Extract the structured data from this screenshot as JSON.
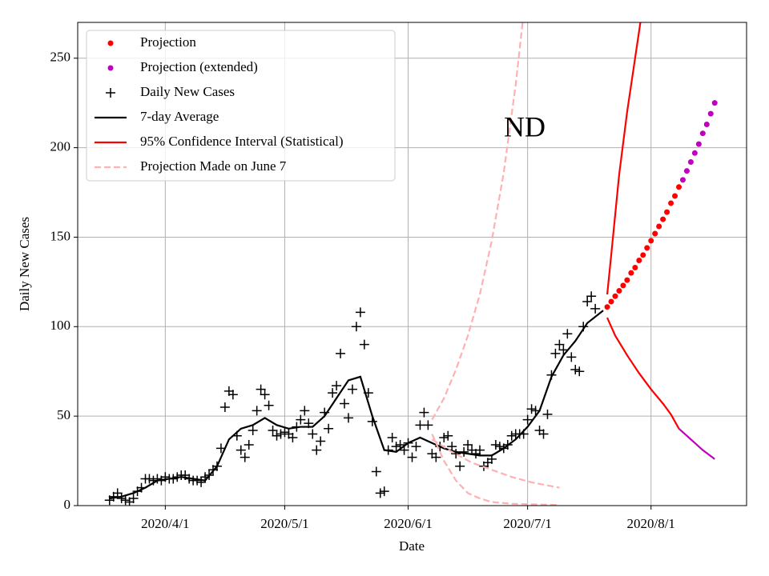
{
  "chart_data": {
    "type": "line",
    "annotation": "ND",
    "xlabel": "Date",
    "ylabel": "Daily New Cases",
    "xlim": [
      "2020/3/10",
      "2020/8/25"
    ],
    "ylim": [
      0,
      270
    ],
    "xticks": [
      "2020/4/1",
      "2020/5/1",
      "2020/6/1",
      "2020/7/1",
      "2020/8/1"
    ],
    "yticks": [
      0,
      50,
      100,
      150,
      200,
      250
    ],
    "grid": true,
    "legend": "upper left",
    "series": [
      {
        "name": "Projection",
        "color": "#ff0000",
        "style": "dot",
        "x": [
          "2020/7/21",
          "2020/7/22",
          "2020/7/23",
          "2020/7/24",
          "2020/7/25",
          "2020/7/26",
          "2020/7/27",
          "2020/7/28",
          "2020/7/29",
          "2020/7/30",
          "2020/7/31",
          "2020/8/1",
          "2020/8/2",
          "2020/8/3",
          "2020/8/4",
          "2020/8/5",
          "2020/8/6",
          "2020/8/7",
          "2020/8/8"
        ],
        "values": [
          111,
          114,
          117,
          120,
          123,
          126,
          130,
          133,
          137,
          140,
          144,
          148,
          152,
          156,
          160,
          164,
          169,
          173,
          178
        ]
      },
      {
        "name": "Projection (extended)",
        "color": "#bf00bf",
        "style": "dot",
        "x": [
          "2020/8/9",
          "2020/8/10",
          "2020/8/11",
          "2020/8/12",
          "2020/8/13",
          "2020/8/14",
          "2020/8/15",
          "2020/8/16",
          "2020/8/17"
        ],
        "values": [
          182,
          187,
          192,
          197,
          202,
          208,
          213,
          219,
          225
        ]
      },
      {
        "name": "Daily New Cases",
        "color": "#000000",
        "style": "plus",
        "x": [
          "2020/3/18",
          "2020/3/19",
          "2020/3/20",
          "2020/3/21",
          "2020/3/22",
          "2020/3/23",
          "2020/3/24",
          "2020/3/25",
          "2020/3/26",
          "2020/3/27",
          "2020/3/28",
          "2020/3/29",
          "2020/3/30",
          "2020/3/31",
          "2020/4/1",
          "2020/4/2",
          "2020/4/3",
          "2020/4/4",
          "2020/4/5",
          "2020/4/6",
          "2020/4/7",
          "2020/4/8",
          "2020/4/9",
          "2020/4/10",
          "2020/4/11",
          "2020/4/12",
          "2020/4/13",
          "2020/4/14",
          "2020/4/15",
          "2020/4/16",
          "2020/4/17",
          "2020/4/18",
          "2020/4/19",
          "2020/4/20",
          "2020/4/21",
          "2020/4/22",
          "2020/4/23",
          "2020/4/24",
          "2020/4/25",
          "2020/4/26",
          "2020/4/27",
          "2020/4/28",
          "2020/4/29",
          "2020/4/30",
          "2020/5/1",
          "2020/5/2",
          "2020/5/3",
          "2020/5/4",
          "2020/5/5",
          "2020/5/6",
          "2020/5/7",
          "2020/5/8",
          "2020/5/9",
          "2020/5/10",
          "2020/5/11",
          "2020/5/12",
          "2020/5/13",
          "2020/5/14",
          "2020/5/15",
          "2020/5/16",
          "2020/5/17",
          "2020/5/18",
          "2020/5/19",
          "2020/5/20",
          "2020/5/21",
          "2020/5/22",
          "2020/5/23",
          "2020/5/24",
          "2020/5/25",
          "2020/5/26",
          "2020/5/27",
          "2020/5/28",
          "2020/5/29",
          "2020/5/30",
          "2020/5/31",
          "2020/6/1",
          "2020/6/2",
          "2020/6/3",
          "2020/6/4",
          "2020/6/5",
          "2020/6/6",
          "2020/6/7",
          "2020/6/8",
          "2020/6/9",
          "2020/6/10",
          "2020/6/11",
          "2020/6/12",
          "2020/6/13",
          "2020/6/14",
          "2020/6/15",
          "2020/6/16",
          "2020/6/17",
          "2020/6/18",
          "2020/6/19",
          "2020/6/20",
          "2020/6/21",
          "2020/6/22",
          "2020/6/23",
          "2020/6/24",
          "2020/6/25",
          "2020/6/26",
          "2020/6/27",
          "2020/6/28",
          "2020/6/29",
          "2020/6/30",
          "2020/7/1",
          "2020/7/2",
          "2020/7/3",
          "2020/7/4",
          "2020/7/5",
          "2020/7/6",
          "2020/7/7",
          "2020/7/8",
          "2020/7/9",
          "2020/7/10",
          "2020/7/11",
          "2020/7/12",
          "2020/7/13",
          "2020/7/14",
          "2020/7/15",
          "2020/7/16",
          "2020/7/17",
          "2020/7/18"
        ],
        "values": [
          3,
          5,
          7,
          4,
          3,
          2,
          4,
          8,
          10,
          15,
          15,
          14,
          15,
          14,
          16,
          15,
          15,
          16,
          17,
          17,
          15,
          14,
          14,
          13,
          16,
          17,
          20,
          22,
          32,
          55,
          64,
          62,
          39,
          31,
          27,
          34,
          42,
          53,
          65,
          62,
          56,
          42,
          39,
          40,
          41,
          40,
          38,
          44,
          48,
          53,
          46,
          40,
          31,
          36,
          52,
          43,
          63,
          67,
          85,
          57,
          49,
          65,
          100,
          108,
          90,
          63,
          47,
          19,
          7,
          8,
          31,
          38,
          33,
          34,
          31,
          35,
          27,
          33,
          45,
          52,
          45,
          29,
          27,
          33,
          38,
          39,
          33,
          29,
          22,
          30,
          34,
          31,
          29,
          31,
          22,
          24,
          26,
          34,
          33,
          32,
          34,
          39,
          40,
          40,
          40,
          48,
          54,
          53,
          42,
          40,
          51,
          73,
          85,
          90,
          87,
          96,
          83,
          76,
          75,
          100,
          114,
          117,
          110
        ]
      },
      {
        "name": "7-day Average",
        "color": "#000000",
        "style": "line",
        "x": [
          "2020/3/18",
          "2020/3/21",
          "2020/3/24",
          "2020/3/27",
          "2020/3/30",
          "2020/4/2",
          "2020/4/5",
          "2020/4/8",
          "2020/4/11",
          "2020/4/14",
          "2020/4/17",
          "2020/4/20",
          "2020/4/23",
          "2020/4/26",
          "2020/4/29",
          "2020/5/2",
          "2020/5/5",
          "2020/5/8",
          "2020/5/11",
          "2020/5/14",
          "2020/5/17",
          "2020/5/20",
          "2020/5/23",
          "2020/5/26",
          "2020/5/29",
          "2020/6/1",
          "2020/6/4",
          "2020/6/7",
          "2020/6/10",
          "2020/6/13",
          "2020/6/16",
          "2020/6/19",
          "2020/6/22",
          "2020/6/25",
          "2020/6/28",
          "2020/7/1",
          "2020/7/4",
          "2020/7/7",
          "2020/7/10",
          "2020/7/13",
          "2020/7/16",
          "2020/7/20"
        ],
        "values": [
          4,
          5,
          7,
          10,
          14,
          15,
          16,
          15,
          14,
          22,
          37,
          43,
          45,
          49,
          45,
          43,
          44,
          44,
          50,
          60,
          70,
          72,
          50,
          31,
          30,
          35,
          38,
          35,
          32,
          30,
          29,
          28,
          28,
          32,
          37,
          44,
          53,
          72,
          84,
          92,
          102,
          109
        ]
      },
      {
        "name": "95% Confidence Interval (Statistical)",
        "color": "#ff0000",
        "style": "line",
        "x": [
          "2020/7/21",
          "2020/7/23",
          "2020/7/26",
          "2020/7/29",
          "2020/8/1",
          "2020/8/4",
          "2020/8/6",
          "2020/8/8"
        ],
        "values": [
          105,
          95,
          84,
          74,
          65,
          57,
          51,
          43
        ]
      },
      {
        "name": "Projection Made on June 7",
        "color": "#ffb0b0",
        "style": "dashed",
        "x": [
          "2020/6/7",
          "2020/6/10",
          "2020/6/13",
          "2020/6/16",
          "2020/6/19",
          "2020/6/22",
          "2020/6/25",
          "2020/6/28",
          "2020/6/30"
        ],
        "values": [
          48,
          60,
          76,
          95,
          118,
          148,
          186,
          235,
          275
        ]
      },
      {
        "color": "#ff0000",
        "style": "line",
        "x": [
          "2020/7/21",
          "2020/7/22",
          "2020/7/24",
          "2020/7/26",
          "2020/7/28",
          "2020/7/30"
        ],
        "values": [
          118,
          140,
          185,
          220,
          250,
          280
        ]
      },
      {
        "color": "#bf00bf",
        "style": "line",
        "x": [
          "2020/8/8",
          "2020/8/11",
          "2020/8/14",
          "2020/8/17"
        ],
        "values": [
          43,
          37,
          31,
          26
        ]
      },
      {
        "color": "#ffb0b0",
        "style": "dashed",
        "x": [
          "2020/6/7",
          "2020/6/12",
          "2020/6/17",
          "2020/6/22",
          "2020/6/27",
          "2020/7/2",
          "2020/7/9"
        ],
        "values": [
          37,
          30,
          24,
          20,
          16,
          13,
          10
        ]
      },
      {
        "color": "#ffb0b0",
        "style": "dashed",
        "x": [
          "2020/6/7",
          "2020/6/10",
          "2020/6/13",
          "2020/6/16",
          "2020/6/19",
          "2020/6/22",
          "2020/6/27",
          "2020/7/9"
        ],
        "values": [
          40,
          25,
          14,
          7,
          4,
          2,
          1,
          0.3
        ]
      }
    ]
  }
}
